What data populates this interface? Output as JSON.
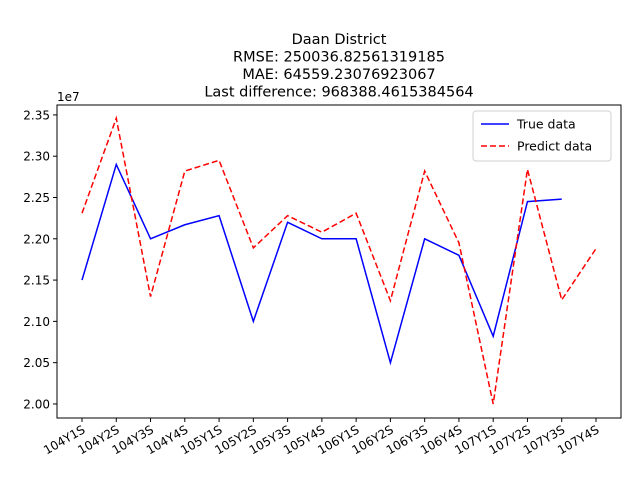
{
  "chart_data": {
    "type": "line",
    "title": [
      "Daan District",
      "RMSE: 250036.82561319185",
      "MAE: 64559.23076923067",
      "Last difference: 968388.4615384564"
    ],
    "y_offset_label": "1e7",
    "categories": [
      "104Y1S",
      "104Y2S",
      "104Y3S",
      "104Y4S",
      "105Y1S",
      "105Y2S",
      "105Y3S",
      "105Y4S",
      "106Y1S",
      "106Y2S",
      "106Y3S",
      "106Y4S",
      "107Y1S",
      "107Y2S",
      "107Y3S",
      "107Y4S"
    ],
    "series": [
      {
        "name": "True data",
        "color": "#0000ff",
        "style": "solid",
        "values": [
          2.15,
          2.29,
          2.2,
          2.217,
          2.228,
          2.1,
          2.22,
          2.2,
          2.2,
          2.05,
          2.2,
          2.18,
          2.082,
          2.245,
          2.248,
          null
        ]
      },
      {
        "name": "Predict data",
        "color": "#ff0000",
        "style": "dashed",
        "values": [
          2.231,
          2.346,
          2.13,
          2.282,
          2.295,
          2.189,
          2.228,
          2.208,
          2.231,
          2.125,
          2.282,
          2.195,
          2.0,
          2.284,
          2.126,
          2.188
        ]
      }
    ],
    "ylim": [
      1.983,
      2.362
    ],
    "yticks": [
      {
        "value": 2.0,
        "label": "2.00"
      },
      2.05,
      {
        "value": 2.1,
        "label": "2.10"
      },
      2.15,
      {
        "value": 2.2,
        "label": "2.20"
      },
      2.25,
      {
        "value": 2.3,
        "label": "2.30"
      },
      2.35
    ],
    "legend": "upper right"
  }
}
